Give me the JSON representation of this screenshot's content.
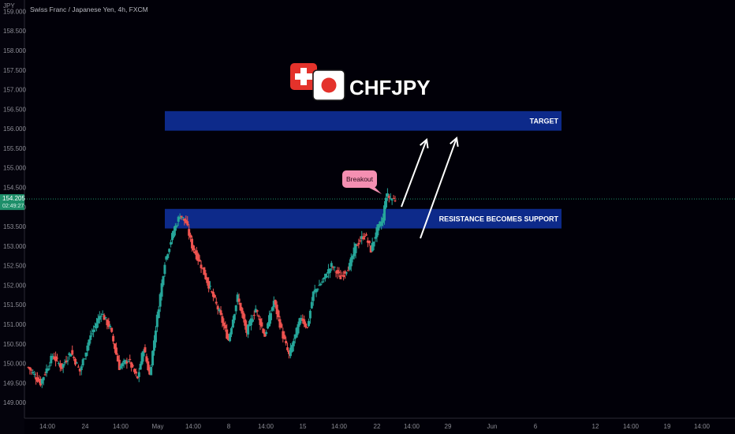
{
  "header": {
    "title": "Swiss Franc / Japanese Yen, 4h, FXCM",
    "currency": "JPY"
  },
  "logo": {
    "symbol": "CHFJPY"
  },
  "price_tag": {
    "price": "154.205",
    "countdown": "02:49:27"
  },
  "zones": {
    "target_label": "TARGET",
    "support_label": "RESISTANCE BECOMES SUPPORT"
  },
  "callout": {
    "label": "Breakout"
  },
  "colors": {
    "background": "#010008",
    "up": "#26a69a",
    "down": "#ef5350",
    "zone": "#0d2a8a",
    "callout": "#f48fb1",
    "price_tag": "#1e8f6a"
  },
  "chart_data": {
    "type": "candlestick",
    "ylim": [
      148.7,
      159.15
    ],
    "y_ticks": [
      149.0,
      149.5,
      150.0,
      150.5,
      151.0,
      151.5,
      152.0,
      152.5,
      153.0,
      153.5,
      154.0,
      154.5,
      155.0,
      155.5,
      156.0,
      156.5,
      157.0,
      157.5,
      158.0,
      158.5,
      159.0
    ],
    "x_ticks": [
      "14:00",
      "24",
      "14:00",
      "May",
      "14:00",
      "8",
      "14:00",
      "15",
      "14:00",
      "22",
      "14:00",
      "29",
      "Jun",
      "6",
      "12",
      "14:00",
      "19",
      "14:00"
    ],
    "zones": [
      {
        "name": "TARGET",
        "low": 155.95,
        "high": 156.45
      },
      {
        "name": "RESISTANCE BECOMES SUPPORT",
        "low": 153.45,
        "high": 153.95
      }
    ],
    "last_price": 154.205,
    "close_path": [
      [
        0,
        149.9
      ],
      [
        4,
        149.5
      ],
      [
        8,
        150.2
      ],
      [
        11,
        149.9
      ],
      [
        14,
        150.3
      ],
      [
        17,
        149.8
      ],
      [
        20,
        150.6
      ],
      [
        24,
        151.3
      ],
      [
        27,
        150.9
      ],
      [
        30,
        149.9
      ],
      [
        33,
        150.1
      ],
      [
        36,
        149.6
      ],
      [
        38,
        150.4
      ],
      [
        40,
        149.7
      ],
      [
        42,
        150.9
      ],
      [
        45,
        152.6
      ],
      [
        48,
        153.4
      ],
      [
        50,
        153.8
      ],
      [
        52,
        153.6
      ],
      [
        54,
        153.0
      ],
      [
        57,
        152.5
      ],
      [
        60,
        151.9
      ],
      [
        63,
        151.3
      ],
      [
        66,
        150.6
      ],
      [
        69,
        151.7
      ],
      [
        72,
        150.8
      ],
      [
        75,
        151.4
      ],
      [
        78,
        150.7
      ],
      [
        81,
        151.6
      ],
      [
        84,
        150.7
      ],
      [
        86,
        150.2
      ],
      [
        88,
        150.7
      ],
      [
        90,
        151.2
      ],
      [
        92,
        150.9
      ],
      [
        94,
        151.8
      ],
      [
        97,
        152.1
      ],
      [
        100,
        152.5
      ],
      [
        103,
        152.2
      ],
      [
        106,
        152.5
      ],
      [
        108,
        153.0
      ],
      [
        111,
        153.3
      ],
      [
        113,
        152.9
      ],
      [
        115,
        153.4
      ],
      [
        117,
        153.7
      ],
      [
        118,
        154.3
      ],
      [
        120,
        154.2
      ],
      [
        121,
        154.205
      ]
    ]
  }
}
